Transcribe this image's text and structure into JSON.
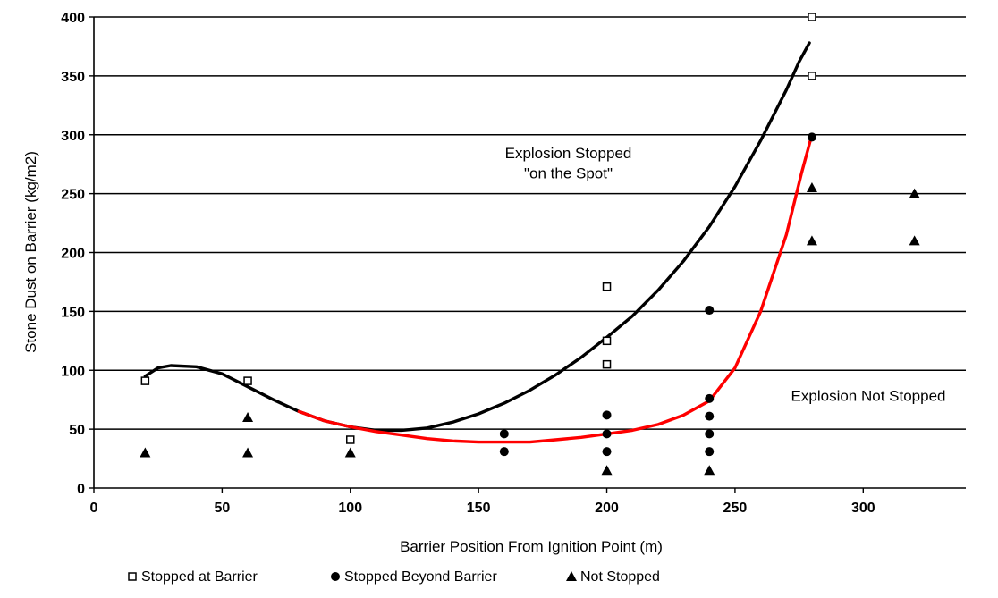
{
  "chart_data": {
    "type": "scatter",
    "title": "",
    "xlabel": "Barrier Position From Ignition Point (m)",
    "ylabel": "Stone Dust on Barrier (kg/m2)",
    "xlim": [
      0,
      340
    ],
    "ylim": [
      0,
      400
    ],
    "xticks": [
      0,
      50,
      100,
      150,
      200,
      250,
      300
    ],
    "yticks": [
      0,
      50,
      100,
      150,
      200,
      250,
      300,
      350,
      400
    ],
    "grid": "horizontal",
    "legend_position": "bottom",
    "series": [
      {
        "name": "Stopped at Barrier",
        "marker": "square-open",
        "color": "#000000",
        "points": [
          [
            20,
            91
          ],
          [
            60,
            91
          ],
          [
            100,
            41
          ],
          [
            200,
            171
          ],
          [
            200,
            125
          ],
          [
            200,
            105
          ],
          [
            280,
            400
          ],
          [
            280,
            350
          ]
        ]
      },
      {
        "name": "Stopped Beyond Barrier",
        "marker": "circle",
        "color": "#000000",
        "points": [
          [
            160,
            46
          ],
          [
            160,
            31
          ],
          [
            200,
            62
          ],
          [
            200,
            46
          ],
          [
            200,
            31
          ],
          [
            240,
            151
          ],
          [
            240,
            76
          ],
          [
            240,
            61
          ],
          [
            240,
            46
          ],
          [
            240,
            31
          ],
          [
            280,
            298
          ]
        ]
      },
      {
        "name": "Not Stopped",
        "marker": "triangle",
        "color": "#000000",
        "points": [
          [
            20,
            30
          ],
          [
            60,
            60
          ],
          [
            60,
            30
          ],
          [
            100,
            30
          ],
          [
            200,
            15
          ],
          [
            240,
            15
          ],
          [
            280,
            255
          ],
          [
            280,
            210
          ],
          [
            320,
            250
          ],
          [
            320,
            210
          ]
        ]
      }
    ],
    "curves": [
      {
        "color": "#000000",
        "points": [
          [
            20,
            95
          ],
          [
            25,
            102
          ],
          [
            30,
            104
          ],
          [
            40,
            103
          ],
          [
            50,
            97
          ],
          [
            60,
            86
          ],
          [
            70,
            75
          ],
          [
            80,
            65
          ],
          [
            90,
            57
          ],
          [
            100,
            52
          ],
          [
            110,
            49
          ],
          [
            120,
            49
          ],
          [
            130,
            51
          ],
          [
            140,
            56
          ],
          [
            150,
            63
          ],
          [
            160,
            72
          ],
          [
            170,
            83
          ],
          [
            180,
            96
          ],
          [
            190,
            111
          ],
          [
            200,
            128
          ],
          [
            210,
            146
          ],
          [
            220,
            168
          ],
          [
            230,
            193
          ],
          [
            240,
            222
          ],
          [
            250,
            256
          ],
          [
            260,
            295
          ],
          [
            270,
            338
          ],
          [
            275,
            362
          ],
          [
            279,
            378
          ]
        ]
      },
      {
        "color": "#ff0000",
        "points": [
          [
            80,
            65
          ],
          [
            90,
            57
          ],
          [
            100,
            52
          ],
          [
            110,
            48
          ],
          [
            120,
            45
          ],
          [
            130,
            42
          ],
          [
            140,
            40
          ],
          [
            150,
            39
          ],
          [
            160,
            39
          ],
          [
            170,
            39
          ],
          [
            180,
            41
          ],
          [
            190,
            43
          ],
          [
            200,
            46
          ],
          [
            210,
            49
          ],
          [
            220,
            54
          ],
          [
            230,
            62
          ],
          [
            240,
            74
          ],
          [
            250,
            102
          ],
          [
            260,
            150
          ],
          [
            270,
            215
          ],
          [
            276,
            268
          ],
          [
            280,
            300
          ]
        ]
      }
    ],
    "annotations": [
      {
        "text": "Explosion Stopped",
        "x": 185,
        "y": 280
      },
      {
        "text": "\"on the Spot\"",
        "x": 185,
        "y": 263
      },
      {
        "text": "Explosion Not Stopped",
        "x": 302,
        "y": 74
      }
    ]
  }
}
